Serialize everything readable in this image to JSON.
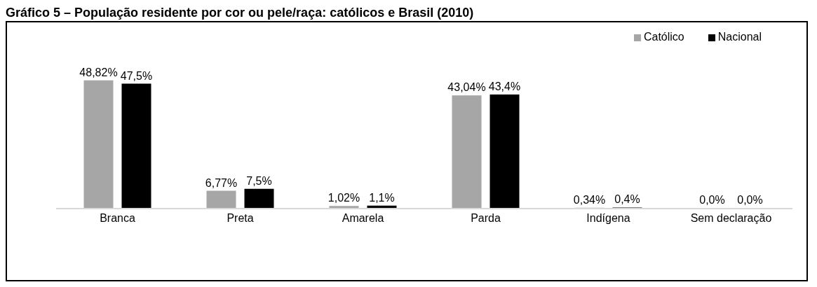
{
  "chart_data": {
    "type": "bar",
    "title": "Gráfico 5 – População residente por cor ou pele/raça: católicos e Brasil (2010)",
    "categories": [
      "Branca",
      "Preta",
      "Amarela",
      "Parda",
      "Indígena",
      "Sem declaração"
    ],
    "series": [
      {
        "name": "Católico",
        "color": "#a6a6a6",
        "values": [
          48.82,
          6.77,
          1.02,
          43.04,
          0.34,
          0.0
        ],
        "value_labels": [
          "48,82%",
          "6,77%",
          "1,02%",
          "43,04%",
          "0,34%",
          "0,0%"
        ]
      },
      {
        "name": "Nacional",
        "color": "#000000",
        "values": [
          47.5,
          7.5,
          1.1,
          43.4,
          0.4,
          0.0
        ],
        "value_labels": [
          "47,5%",
          "7,5%",
          "1,1%",
          "43,4%",
          "0,4%",
          "0,0%"
        ]
      }
    ],
    "legend": "top right",
    "grid": false
  }
}
